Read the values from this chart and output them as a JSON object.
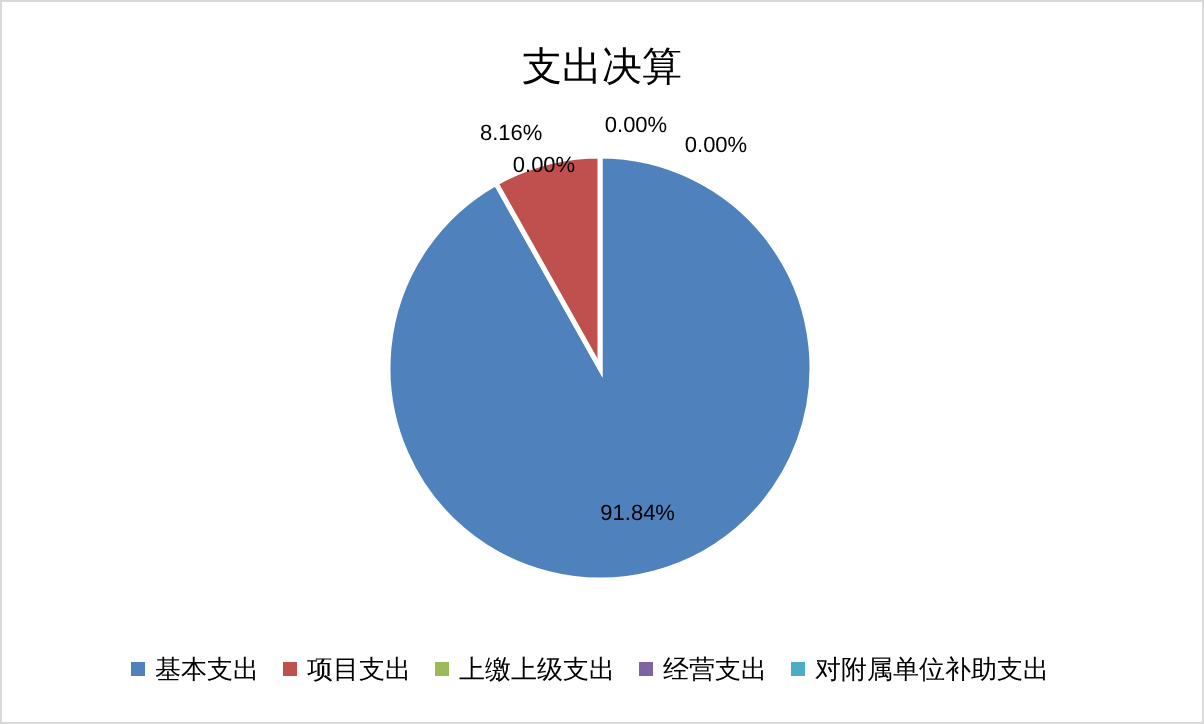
{
  "chart_data": {
    "type": "pie",
    "title": "支出决算",
    "categories": [
      "基本支出",
      "项目支出",
      "上缴上级支出",
      "经营支出",
      "对附属单位补助支出"
    ],
    "values": [
      91.84,
      8.16,
      0.0,
      0.0,
      0.0
    ],
    "colors": [
      "#4f81bd",
      "#c0504d",
      "#9bbb59",
      "#8064a2",
      "#4bacc6"
    ],
    "value_labels": [
      "91.84%",
      "8.16%",
      "0.00%",
      "0.00%",
      "0.00%"
    ],
    "legend": "bottom"
  }
}
